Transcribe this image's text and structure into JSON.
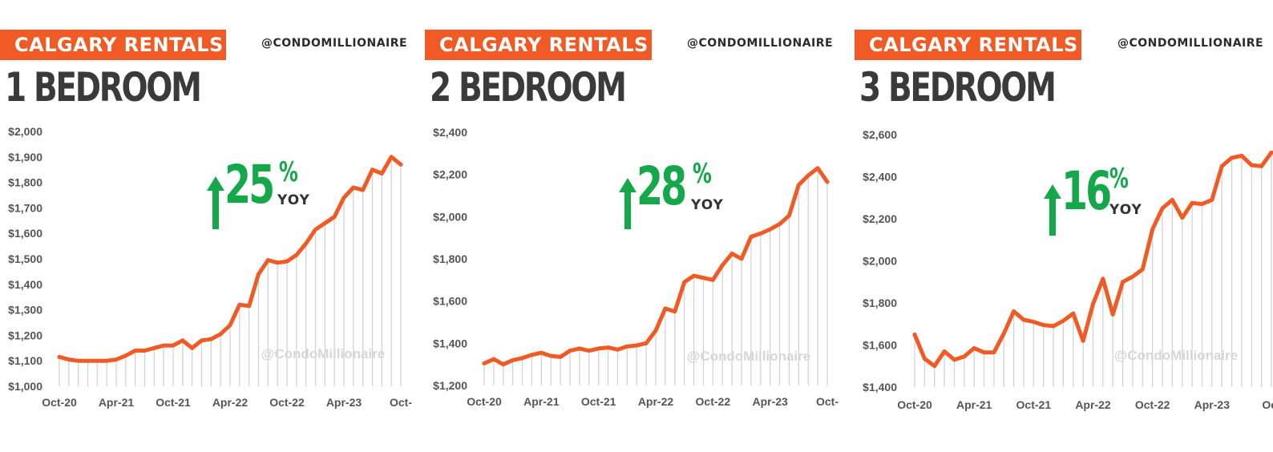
{
  "colors": {
    "banner": "#f05a24",
    "line": "#f05a24",
    "increase": "#14a84a",
    "drop_line": "#d0d0d0"
  },
  "panels": [
    {
      "banner": "CALGARY RENTALS",
      "handle": "@CONDOMILLIONAIRE",
      "title": "1 BEDROOM",
      "yoy": {
        "arrow_icon": "up-arrow-icon",
        "value": "25",
        "percent": "%",
        "label": "YOY"
      },
      "watermark": "@CondoMillionaire"
    },
    {
      "banner": "CALGARY RENTALS",
      "handle": "@CONDOMILLIONAIRE",
      "title": "2 BEDROOM",
      "yoy": {
        "arrow_icon": "up-arrow-icon",
        "value": "28",
        "percent": "%",
        "label": "YOY"
      },
      "watermark": "@CondoMillionaire"
    },
    {
      "banner": "CALGARY RENTALS",
      "handle": "@CONDOMILLIONAIRE",
      "title": "3 BEDROOM",
      "yoy": {
        "arrow_icon": "up-arrow-icon",
        "value": "16",
        "percent": "%",
        "label": "YOY"
      },
      "watermark": "@CondoMillionaire"
    }
  ],
  "chart_data": [
    {
      "type": "line",
      "title": "1 BEDROOM",
      "ylim": [
        1000,
        2000
      ],
      "yticks": [
        1000,
        1100,
        1200,
        1300,
        1400,
        1500,
        1600,
        1700,
        1800,
        1900,
        2000
      ],
      "ytick_labels": [
        "$1,000",
        "$1,100",
        "$1,200",
        "$1,300",
        "$1,400",
        "$1,500",
        "$1,600",
        "$1,700",
        "$1,800",
        "$1,900",
        "$2,000"
      ],
      "x_tick_labels": [
        "Oct-20",
        "Apr-21",
        "Oct-21",
        "Apr-22",
        "Oct-22",
        "Apr-23",
        "Oct-"
      ],
      "x_tick_month_index": [
        0,
        6,
        12,
        18,
        24,
        30,
        36
      ],
      "grid": false,
      "drop_lines": true,
      "x": [
        "Oct-20",
        "Nov-20",
        "Dec-20",
        "Jan-21",
        "Feb-21",
        "Mar-21",
        "Apr-21",
        "May-21",
        "Jun-21",
        "Jul-21",
        "Aug-21",
        "Sep-21",
        "Oct-21",
        "Nov-21",
        "Dec-21",
        "Jan-22",
        "Feb-22",
        "Mar-22",
        "Apr-22",
        "May-22",
        "Jun-22",
        "Jul-22",
        "Aug-22",
        "Sep-22",
        "Oct-22",
        "Nov-22",
        "Dec-22",
        "Jan-23",
        "Feb-23",
        "Mar-23",
        "Apr-23",
        "May-23",
        "Jun-23",
        "Jul-23",
        "Aug-23",
        "Sep-23",
        "Oct-23"
      ],
      "values": [
        1115,
        1105,
        1100,
        1100,
        1100,
        1100,
        1105,
        1120,
        1140,
        1140,
        1150,
        1160,
        1160,
        1180,
        1150,
        1180,
        1185,
        1205,
        1240,
        1320,
        1315,
        1440,
        1495,
        1485,
        1490,
        1515,
        1560,
        1615,
        1640,
        1665,
        1740,
        1780,
        1770,
        1850,
        1835,
        1900,
        1870
      ]
    },
    {
      "type": "line",
      "title": "2 BEDROOM",
      "ylim": [
        1200,
        2400
      ],
      "yticks": [
        1200,
        1400,
        1600,
        1800,
        2000,
        2200,
        2400
      ],
      "ytick_labels": [
        "$1,200",
        "$1,400",
        "$1,600",
        "$1,800",
        "$2,000",
        "$2,200",
        "$2,400"
      ],
      "x_tick_labels": [
        "Oct-20",
        "Apr-21",
        "Oct-21",
        "Apr-22",
        "Oct-22",
        "Apr-23",
        "Oct-"
      ],
      "x_tick_month_index": [
        0,
        6,
        12,
        18,
        24,
        30,
        36
      ],
      "grid": false,
      "drop_lines": true,
      "x": [
        "Oct-20",
        "Nov-20",
        "Dec-20",
        "Jan-21",
        "Feb-21",
        "Mar-21",
        "Apr-21",
        "May-21",
        "Jun-21",
        "Jul-21",
        "Aug-21",
        "Sep-21",
        "Oct-21",
        "Nov-21",
        "Dec-21",
        "Jan-22",
        "Feb-22",
        "Mar-22",
        "Apr-22",
        "May-22",
        "Jun-22",
        "Jul-22",
        "Aug-22",
        "Sep-22",
        "Oct-22",
        "Nov-22",
        "Dec-22",
        "Jan-23",
        "Feb-23",
        "Mar-23",
        "Apr-23",
        "May-23",
        "Jun-23",
        "Jul-23",
        "Aug-23",
        "Sep-23",
        "Oct-23"
      ],
      "values": [
        1305,
        1325,
        1300,
        1320,
        1330,
        1345,
        1355,
        1340,
        1335,
        1365,
        1375,
        1365,
        1375,
        1380,
        1370,
        1385,
        1390,
        1400,
        1460,
        1565,
        1550,
        1690,
        1720,
        1710,
        1700,
        1770,
        1825,
        1800,
        1905,
        1920,
        1940,
        1965,
        2005,
        2150,
        2195,
        2230,
        2165
      ]
    },
    {
      "type": "line",
      "title": "3 BEDROOM",
      "ylim": [
        1400,
        2600
      ],
      "yticks": [
        1400,
        1600,
        1800,
        2000,
        2200,
        2400,
        2600
      ],
      "ytick_labels": [
        "$1,400",
        "$1,600",
        "$1,800",
        "$2,000",
        "$2,200",
        "$2,400",
        "$2,600"
      ],
      "x_tick_labels": [
        "Oct-20",
        "Apr-21",
        "Oct-21",
        "Apr-22",
        "Oct-22",
        "Apr-23",
        "Oct"
      ],
      "x_tick_month_index": [
        0,
        6,
        12,
        18,
        24,
        30,
        36
      ],
      "grid": false,
      "drop_lines": true,
      "x": [
        "Oct-20",
        "Nov-20",
        "Dec-20",
        "Jan-21",
        "Feb-21",
        "Mar-21",
        "Apr-21",
        "May-21",
        "Jun-21",
        "Jul-21",
        "Aug-21",
        "Sep-21",
        "Oct-21",
        "Nov-21",
        "Dec-21",
        "Jan-22",
        "Feb-22",
        "Mar-22",
        "Apr-22",
        "May-22",
        "Jun-22",
        "Jul-22",
        "Aug-22",
        "Sep-22",
        "Oct-22",
        "Nov-22",
        "Dec-22",
        "Jan-23",
        "Feb-23",
        "Mar-23",
        "Apr-23",
        "May-23",
        "Jun-23",
        "Jul-23",
        "Aug-23",
        "Sep-23",
        "Oct-23"
      ],
      "values": [
        1650,
        1535,
        1500,
        1570,
        1530,
        1545,
        1585,
        1565,
        1565,
        1655,
        1760,
        1720,
        1710,
        1695,
        1690,
        1715,
        1750,
        1620,
        1795,
        1915,
        1745,
        1900,
        1925,
        1960,
        2150,
        2250,
        2290,
        2205,
        2275,
        2270,
        2290,
        2450,
        2490,
        2500,
        2455,
        2450,
        2515
      ]
    }
  ]
}
